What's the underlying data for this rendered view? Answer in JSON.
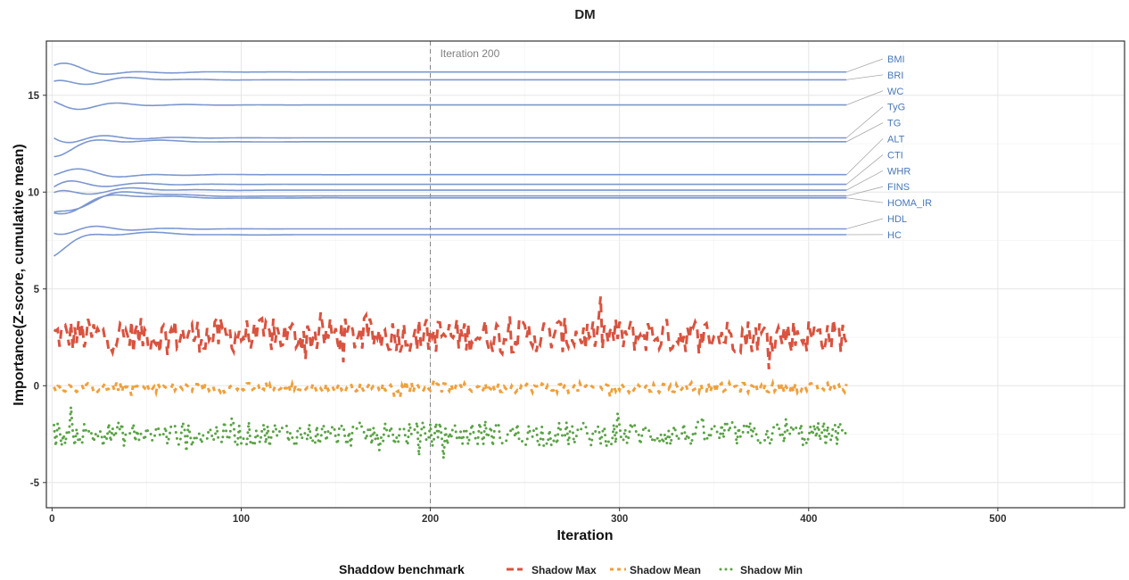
{
  "chart_data": {
    "type": "line",
    "title": "DM",
    "xlabel": "Iteration",
    "ylabel": "Importance(Z-score, cumulative mean)",
    "xlim": [
      -3,
      567
    ],
    "ylim": [
      -6.3,
      17.8
    ],
    "xticks": [
      0,
      100,
      200,
      300,
      400,
      500
    ],
    "yticks": [
      -5,
      0,
      5,
      10,
      15
    ],
    "grid": true,
    "iterations": 420,
    "colors": {
      "features": "#7c97cf",
      "feature_label": "#4a78b5",
      "shadow_max": "#d9533f",
      "shadow_mean": "#f0a03c",
      "shadow_min": "#5aa345",
      "annotation_line": "#808080"
    },
    "annotation": {
      "x": 200,
      "text": "Iteration 200"
    },
    "series": [
      {
        "name": "BMI",
        "start": 16.5,
        "final": 16.2
      },
      {
        "name": "BRI",
        "start": 15.4,
        "final": 15.8
      },
      {
        "name": "WC",
        "start": 14.4,
        "final": 14.5
      },
      {
        "name": "TyG",
        "start": 12.8,
        "final": 12.8
      },
      {
        "name": "TG",
        "start": 12.1,
        "final": 12.6
      },
      {
        "name": "ALT",
        "start": 11.2,
        "final": 10.9
      },
      {
        "name": "CTI",
        "start": 10.3,
        "final": 10.4
      },
      {
        "name": "WHR",
        "start": 9.7,
        "final": 10.1
      },
      {
        "name": "FINS",
        "start": 8.6,
        "final": 9.8
      },
      {
        "name": "HOMA_IR",
        "start": 8.8,
        "final": 9.7
      },
      {
        "name": "HDL",
        "start": 8.1,
        "final": 8.1
      },
      {
        "name": "HC",
        "start": 7.0,
        "final": 7.8
      }
    ],
    "shadow": [
      {
        "name": "Shadow Max",
        "mean": 2.6,
        "spread": 0.9,
        "style": "dashed"
      },
      {
        "name": "Shadow Mean",
        "mean": -0.1,
        "spread": 0.25,
        "style": "dashed-short"
      },
      {
        "name": "Shadow Min",
        "mean": -2.5,
        "spread": 0.65,
        "style": "dotted"
      }
    ],
    "legend": {
      "title": "Shaddow benchmark",
      "position": "bottom"
    }
  }
}
